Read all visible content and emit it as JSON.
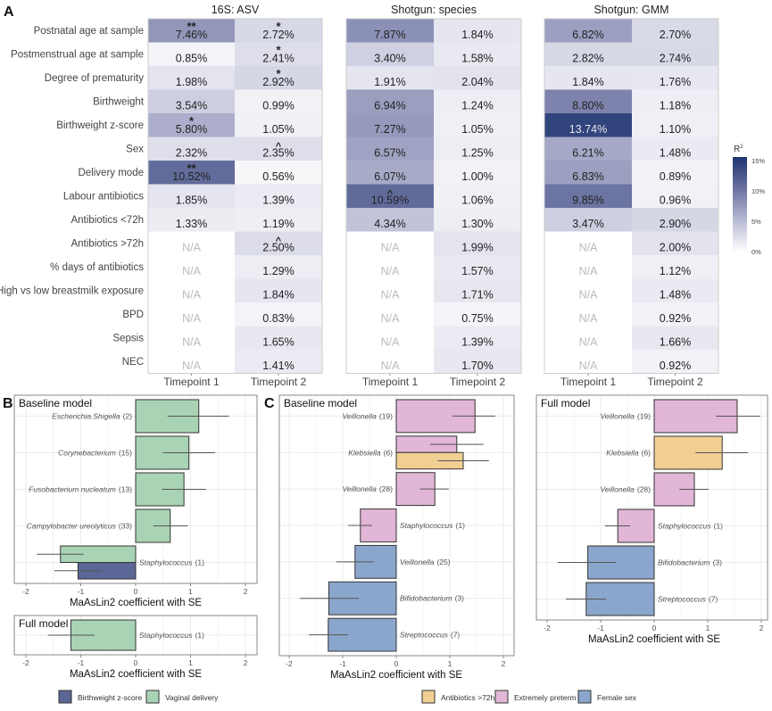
{
  "chart_data": [
    {
      "type": "heatmap",
      "panel_label": "A",
      "rows": [
        "Postnatal age at sample",
        "Postmenstrual age at sample",
        "Degree of prematurity",
        "Birthweight",
        "Birthweight z-score",
        "Sex",
        "Delivery mode",
        "Labour antibiotics",
        "Antibiotics <72h",
        "Antibiotics >72h",
        "% days of antibiotics",
        "High vs low breastmilk exposure",
        "BPD",
        "Sepsis",
        "NEC"
      ],
      "na_label": "N/A",
      "value_unit": "%",
      "legend": {
        "title": "R",
        "title_superscript": "2",
        "ticks": [
          "15%",
          "10%",
          "5%",
          "0%"
        ],
        "tick_values": [
          15,
          10,
          5,
          0
        ],
        "range": [
          0,
          15
        ],
        "colors": [
          "#ffffff",
          "#b8bad3",
          "#6a72a0",
          "#1e3470"
        ]
      },
      "panels": [
        {
          "title": "16S: ASV",
          "columns": [
            {
              "label": "Timepoint 1",
              "values": [
                7.46,
                0.85,
                1.98,
                3.54,
                5.8,
                2.32,
                10.52,
                1.85,
                1.33,
                null,
                null,
                null,
                null,
                null,
                null
              ],
              "sig": [
                "**",
                "",
                "",
                "",
                "*",
                "",
                "**",
                "",
                "",
                "",
                "",
                "",
                "",
                "",
                ""
              ]
            },
            {
              "label": "Timepoint 2",
              "values": [
                2.72,
                2.41,
                2.92,
                0.99,
                1.05,
                2.35,
                0.56,
                1.39,
                1.19,
                2.5,
                1.29,
                1.84,
                0.83,
                1.65,
                1.41
              ],
              "sig": [
                "*",
                "*",
                "*",
                "",
                "",
                "^",
                "",
                "",
                "",
                "^",
                "",
                "",
                "",
                "",
                ""
              ]
            }
          ]
        },
        {
          "title": "Shotgun: species",
          "columns": [
            {
              "label": "Timepoint 1",
              "values": [
                7.87,
                3.4,
                1.91,
                6.94,
                7.27,
                6.57,
                6.07,
                10.59,
                4.34,
                null,
                null,
                null,
                null,
                null,
                null
              ],
              "sig": [
                "",
                "",
                "",
                "",
                "",
                "",
                "",
                "^",
                "",
                "",
                "",
                "",
                "",
                "",
                ""
              ]
            },
            {
              "label": "Timepoint 2",
              "values": [
                1.84,
                1.58,
                2.04,
                1.24,
                1.05,
                1.25,
                1.0,
                1.06,
                1.3,
                1.99,
                1.57,
                1.71,
                0.75,
                1.39,
                1.7
              ],
              "sig": [
                "",
                "",
                "",
                "",
                "",
                "",
                "",
                "",
                "",
                "",
                "",
                "",
                "",
                "",
                ""
              ]
            }
          ]
        },
        {
          "title": "Shotgun: GMM",
          "columns": [
            {
              "label": "Timepoint 1",
              "values": [
                6.82,
                2.82,
                1.84,
                8.8,
                13.74,
                6.21,
                6.83,
                9.85,
                3.47,
                null,
                null,
                null,
                null,
                null,
                null
              ],
              "sig": [
                "",
                "",
                "",
                "",
                "",
                "",
                "",
                "",
                "",
                "",
                "",
                "",
                "",
                "",
                ""
              ]
            },
            {
              "label": "Timepoint 2",
              "values": [
                2.7,
                2.74,
                1.76,
                1.18,
                1.1,
                1.48,
                0.89,
                0.96,
                2.9,
                2.0,
                1.12,
                1.48,
                0.92,
                1.66,
                0.92
              ],
              "sig": [
                "",
                "",
                "",
                "",
                "",
                "",
                "",
                "",
                "",
                "",
                "",
                "",
                "",
                "",
                ""
              ]
            }
          ]
        }
      ]
    },
    {
      "type": "bar",
      "panel_label": "B",
      "orientation": "horizontal",
      "xlabel": "MaAsLin2 coefficient with SE",
      "xlim": [
        -2.2,
        2.2
      ],
      "xticks": [
        "-2",
        "-1",
        "0",
        "1",
        "2"
      ],
      "legend": [
        {
          "name": "Birthweight z-score",
          "color": "#5b6796"
        },
        {
          "name": "Vaginal delivery",
          "color": "#a9d3b5"
        }
      ],
      "legend_position": "bottom",
      "subplots": [
        {
          "title": "Baseline model",
          "groups": [
            {
              "label": "Escherichia.Shigella",
              "n": "(2)",
              "bars": [
                {
                  "series": "Vaginal delivery",
                  "value": 1.15,
                  "se_low": 0.58,
                  "se_high": 1.7
                }
              ]
            },
            {
              "label": "Corynebacterium",
              "n": "(15)",
              "bars": [
                {
                  "series": "Vaginal delivery",
                  "value": 0.97,
                  "se_low": 0.5,
                  "se_high": 1.45
                }
              ]
            },
            {
              "label": "Fusobacterium nucleatum",
              "n": "(13)",
              "bars": [
                {
                  "series": "Vaginal delivery",
                  "value": 0.88,
                  "se_low": 0.48,
                  "se_high": 1.28
                }
              ]
            },
            {
              "label": "Campylobacter ureolyticus",
              "n": "(33)",
              "bars": [
                {
                  "series": "Vaginal delivery",
                  "value": 0.63,
                  "se_low": 0.32,
                  "se_high": 0.95
                }
              ]
            },
            {
              "label": "Staphylococcus",
              "n": "(1)",
              "bars": [
                {
                  "series": "Vaginal delivery",
                  "value": -1.37,
                  "se_low": -1.8,
                  "se_high": -0.95
                },
                {
                  "series": "Birthweight z-score",
                  "value": -1.05,
                  "se_low": -1.48,
                  "se_high": -0.62
                }
              ]
            }
          ]
        },
        {
          "title": "Full model",
          "groups": [
            {
              "label": "Staphylococcus",
              "n": "(1)",
              "bars": [
                {
                  "series": "Vaginal delivery",
                  "value": -1.18,
                  "se_low": -1.6,
                  "se_high": -0.75
                }
              ]
            }
          ]
        }
      ]
    },
    {
      "type": "bar",
      "panel_label": "C",
      "orientation": "horizontal",
      "xlabel": "MaAsLin2 coefficient with SE",
      "xlim": [
        -2.2,
        2.2
      ],
      "xticks": [
        "-2",
        "-1",
        "0",
        "1",
        "2"
      ],
      "legend": [
        {
          "name": "Antibiotics >72h",
          "color": "#f1cf93"
        },
        {
          "name": "Extremely preterm",
          "color": "#e2b6d6"
        },
        {
          "name": "Female sex",
          "color": "#8ba6cc"
        }
      ],
      "legend_position": "bottom",
      "subplots": [
        {
          "title": "Baseline model",
          "groups": [
            {
              "label": "Veillonella",
              "n": "(19)",
              "bars": [
                {
                  "series": "Extremely preterm",
                  "value": 1.47,
                  "se_low": 1.05,
                  "se_high": 1.85
                }
              ]
            },
            {
              "label": "Klebsiella",
              "n": "(6)",
              "bars": [
                {
                  "series": "Extremely preterm",
                  "value": 1.13,
                  "se_low": 0.63,
                  "se_high": 1.63
                },
                {
                  "series": "Antibiotics >72h",
                  "value": 1.25,
                  "se_low": 0.77,
                  "se_high": 1.73
                }
              ]
            },
            {
              "label": "Veillonella",
              "n": "(28)",
              "bars": [
                {
                  "series": "Extremely preterm",
                  "value": 0.72,
                  "se_low": 0.44,
                  "se_high": 0.98
                }
              ]
            },
            {
              "label": "Staphylococcus",
              "n": "(1)",
              "bars": [
                {
                  "series": "Extremely preterm",
                  "value": -0.67,
                  "se_low": -0.9,
                  "se_high": -0.45
                }
              ]
            },
            {
              "label": "Veillonella",
              "n": "(25)",
              "bars": [
                {
                  "series": "Female sex",
                  "value": -0.77,
                  "se_low": -1.12,
                  "se_high": -0.42
                }
              ]
            },
            {
              "label": "Bifidobacterium",
              "n": "(3)",
              "bars": [
                {
                  "series": "Female sex",
                  "value": -1.26,
                  "se_low": -1.8,
                  "se_high": -0.7
                }
              ]
            },
            {
              "label": "Streptococcus",
              "n": "(7)",
              "bars": [
                {
                  "series": "Female sex",
                  "value": -1.27,
                  "se_low": -1.63,
                  "se_high": -0.9
                }
              ]
            }
          ]
        },
        {
          "title": "Full model",
          "groups": [
            {
              "label": "Veillonella",
              "n": "(19)",
              "bars": [
                {
                  "series": "Extremely preterm",
                  "value": 1.55,
                  "se_low": 1.15,
                  "se_high": 1.98
                }
              ]
            },
            {
              "label": "Klebsiella",
              "n": "(6)",
              "bars": [
                {
                  "series": "Antibiotics >72h",
                  "value": 1.27,
                  "se_low": 0.77,
                  "se_high": 1.75
                }
              ]
            },
            {
              "label": "Veillonella",
              "n": "(28)",
              "bars": [
                {
                  "series": "Extremely preterm",
                  "value": 0.75,
                  "se_low": 0.47,
                  "se_high": 1.02
                }
              ]
            },
            {
              "label": "Staphylococcus",
              "n": "(1)",
              "bars": [
                {
                  "series": "Extremely preterm",
                  "value": -0.68,
                  "se_low": -0.92,
                  "se_high": -0.45
                }
              ]
            },
            {
              "label": "Bifidobacterium",
              "n": "(3)",
              "bars": [
                {
                  "series": "Female sex",
                  "value": -1.24,
                  "se_low": -1.8,
                  "se_high": -0.72
                }
              ]
            },
            {
              "label": "Streptococcus",
              "n": "(7)",
              "bars": [
                {
                  "series": "Female sex",
                  "value": -1.27,
                  "se_low": -1.65,
                  "se_high": -0.9
                }
              ]
            }
          ]
        }
      ]
    }
  ]
}
